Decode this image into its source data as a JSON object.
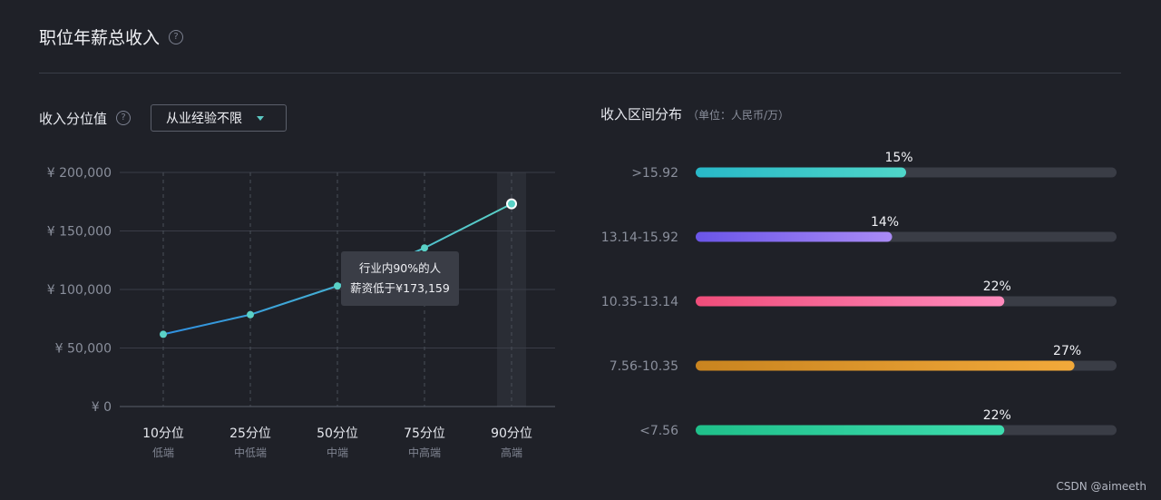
{
  "header": {
    "title": "职位年薪总收入",
    "help_icon": "question-circle-icon"
  },
  "left_panel": {
    "title": "收入分位值",
    "help_icon": "question-circle-icon",
    "select": {
      "value": "从业经验不限"
    },
    "tooltip": {
      "line1": "行业内90%的人",
      "line2": "薪资低于¥173,159"
    }
  },
  "right_panel": {
    "title": "收入区间分布",
    "unit": "（单位：人民币/万）"
  },
  "watermark": "CSDN @aimeeth",
  "chart_data": [
    {
      "type": "line",
      "categories": [
        "10分位",
        "25分位",
        "50分位",
        "75分位",
        "90分位"
      ],
      "sub_labels": [
        "低端",
        "中低端",
        "中端",
        "中高端",
        "高端"
      ],
      "values": [
        61700,
        78500,
        103000,
        135500,
        173159
      ],
      "ylim": [
        0,
        200000
      ],
      "yticks": [
        "¥ 0",
        "¥ 50,000",
        "¥ 100,000",
        "¥ 150,000",
        "¥ 200,000"
      ],
      "highlight_index": 4,
      "colors": {
        "line_start": "#2f8fe0",
        "line_end": "#5ad1c6",
        "grid": "#3a3d47"
      }
    },
    {
      "type": "bar",
      "orientation": "horizontal",
      "categories": [
        ">15.92",
        "13.14-15.92",
        "10.35-13.14",
        "7.56-10.35",
        "<7.56"
      ],
      "values": [
        15,
        14,
        22,
        27,
        22
      ],
      "value_labels": [
        "15%",
        "14%",
        "22%",
        "27%",
        "22%"
      ],
      "xlim": [
        0,
        30
      ],
      "colors": [
        [
          "#28b8c8",
          "#4fd6c9"
        ],
        [
          "#6a55e8",
          "#a98bf5"
        ],
        [
          "#ef4d7a",
          "#ff8bbd"
        ],
        [
          "#c9841f",
          "#f2a93a"
        ],
        [
          "#1fc08a",
          "#3ddcae"
        ]
      ]
    }
  ]
}
